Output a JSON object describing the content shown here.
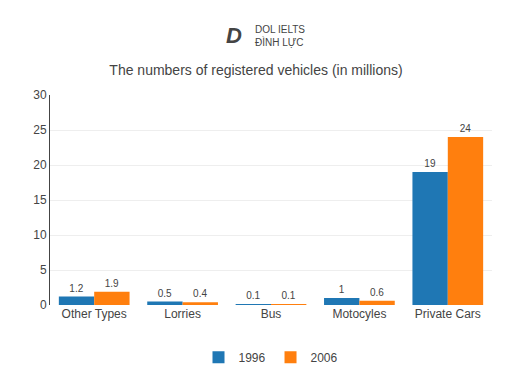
{
  "chart_data": {
    "type": "bar",
    "title": "The numbers of registered vehicles (in millions)",
    "categories": [
      "Other Types",
      "Lorries",
      "Bus",
      "Motocyles",
      "Private Cars"
    ],
    "series": [
      {
        "name": "1996",
        "values": [
          1.2,
          0.5,
          0.1,
          1.0,
          19
        ]
      },
      {
        "name": "2006",
        "values": [
          1.9,
          0.4,
          0.1,
          0.6,
          24
        ]
      }
    ],
    "ylim": [
      0,
      30
    ],
    "yticks": [
      0,
      5,
      10,
      15,
      20,
      25,
      30
    ],
    "grid": true,
    "legend": "bottom",
    "data_labels": true,
    "annotations": [
      "D",
      "DOL IELTS",
      "ĐÌNH LỰC"
    ]
  }
}
